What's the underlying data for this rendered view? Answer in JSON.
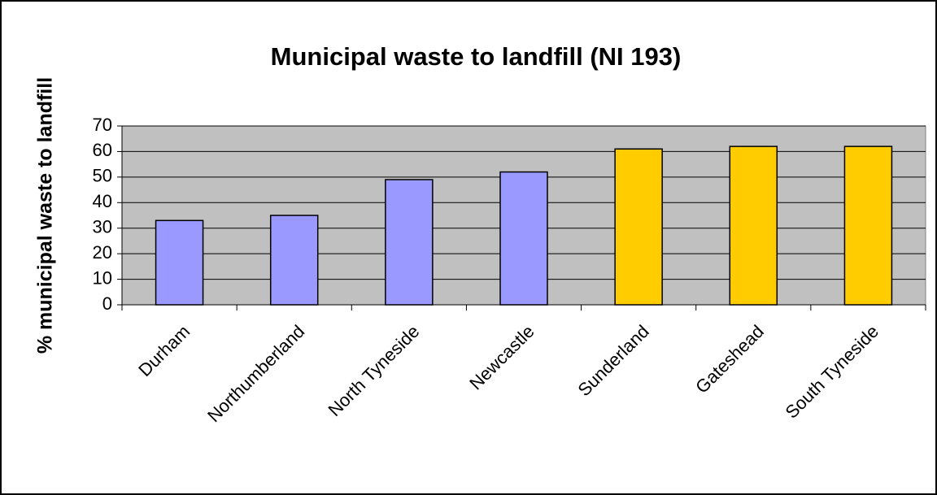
{
  "chart_data": {
    "type": "bar",
    "title": "Municipal waste to landfill (NI 193)",
    "y_label": "% municipal waste to landfill",
    "categories": [
      "Durham",
      "Northumberland",
      "North Tyneside",
      "Newcastle",
      "Sunderland",
      "Gateshead",
      "South Tyneside"
    ],
    "values": [
      33,
      35,
      49,
      52,
      61,
      62,
      62
    ],
    "colors": [
      "#9999ff",
      "#9999ff",
      "#9999ff",
      "#9999ff",
      "#ffcc00",
      "#ffcc00",
      "#ffcc00"
    ],
    "ylim": [
      0,
      70
    ],
    "yticks": [
      0,
      10,
      20,
      30,
      40,
      50,
      60,
      70
    ],
    "grid": true
  }
}
